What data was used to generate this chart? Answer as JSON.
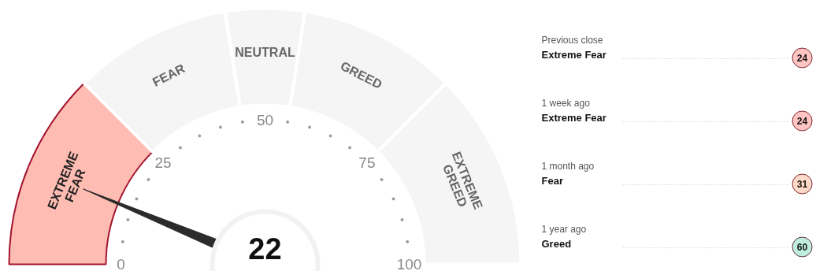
{
  "chart_data": [
    {
      "type": "donut",
      "categories": [
        "EXTREME\nFEAR",
        "FEAR",
        "NEUTRAL",
        "GREED",
        "EXTREME\nGREED"
      ],
      "values": [
        25,
        20,
        10,
        20,
        25
      ],
      "colors": [
        "#ffbcb3",
        "#f5f5f5",
        "#f5f5f5",
        "#f5f5f5",
        "#f5f5f5"
      ],
      "needle": "EXTREME\nFEAR",
      "annotations": [
        "22",
        "0",
        "25",
        "50",
        "75",
        "100"
      ]
    },
    {
      "type": "other",
      "colors": [
        "#ffc5c2",
        "#ffc5c2",
        "#ffd9c7",
        "#bfeee0"
      ],
      "annotations": [
        "Previous close",
        "Extreme Fear",
        "24",
        "1 week ago",
        "Extreme Fear",
        "24",
        "1 month ago",
        "Fear",
        "31",
        "1 year ago",
        "Greed",
        "60"
      ]
    }
  ]
}
